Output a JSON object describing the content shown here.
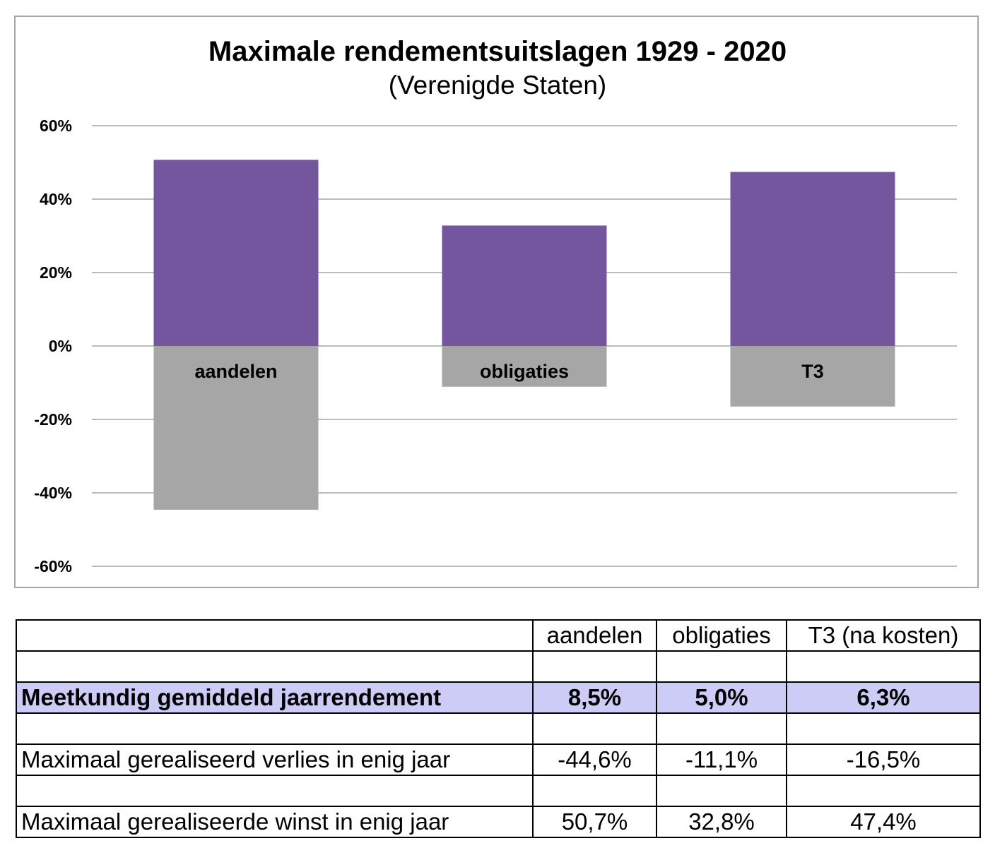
{
  "chart_data": {
    "type": "bar",
    "title": "Maximale rendementsuitslagen 1929 - 2020",
    "subtitle": "(Verenigde Staten)",
    "categories": [
      "aandelen",
      "obligaties",
      "T3"
    ],
    "series": [
      {
        "values": [
          50.7,
          32.8,
          47.4
        ],
        "color": "#73569d"
      },
      {
        "values": [
          -44.6,
          -11.1,
          -16.5
        ],
        "color": "#a6a6a6"
      }
    ],
    "ylim": [
      -60,
      60
    ],
    "yticks": [
      60,
      40,
      20,
      0,
      -20,
      -40,
      -60
    ],
    "ytick_labels": [
      "60%",
      "40%",
      "20%",
      "0%",
      "-20%",
      "-40%",
      "-60%"
    ],
    "grid": true,
    "legend": "none",
    "colors": {
      "gain": "#73569d",
      "loss": "#a6a6a6",
      "grid": "#a6a6a6"
    }
  },
  "table": {
    "headers": [
      "",
      "aandelen",
      "obligaties",
      "T3 (na kosten)"
    ],
    "rows": [
      {
        "label": "",
        "values": [
          "",
          "",
          ""
        ],
        "highlight": false
      },
      {
        "label": "Meetkundig gemiddeld jaarrendement",
        "values": [
          "8,5%",
          "5,0%",
          "6,3%"
        ],
        "highlight": true
      },
      {
        "label": "",
        "values": [
          "",
          "",
          ""
        ],
        "highlight": false
      },
      {
        "label": "Maximaal gerealiseerd verlies in enig jaar",
        "values": [
          "-44,6%",
          "-11,1%",
          "-16,5%"
        ],
        "highlight": false
      },
      {
        "label": "",
        "values": [
          "",
          "",
          ""
        ],
        "highlight": false
      },
      {
        "label": "Maximaal gerealiseerde winst in enig jaar",
        "values": [
          "50,7%",
          "32,8%",
          "47,4%"
        ],
        "highlight": false
      }
    ],
    "highlight_color": "#ccccf7"
  }
}
